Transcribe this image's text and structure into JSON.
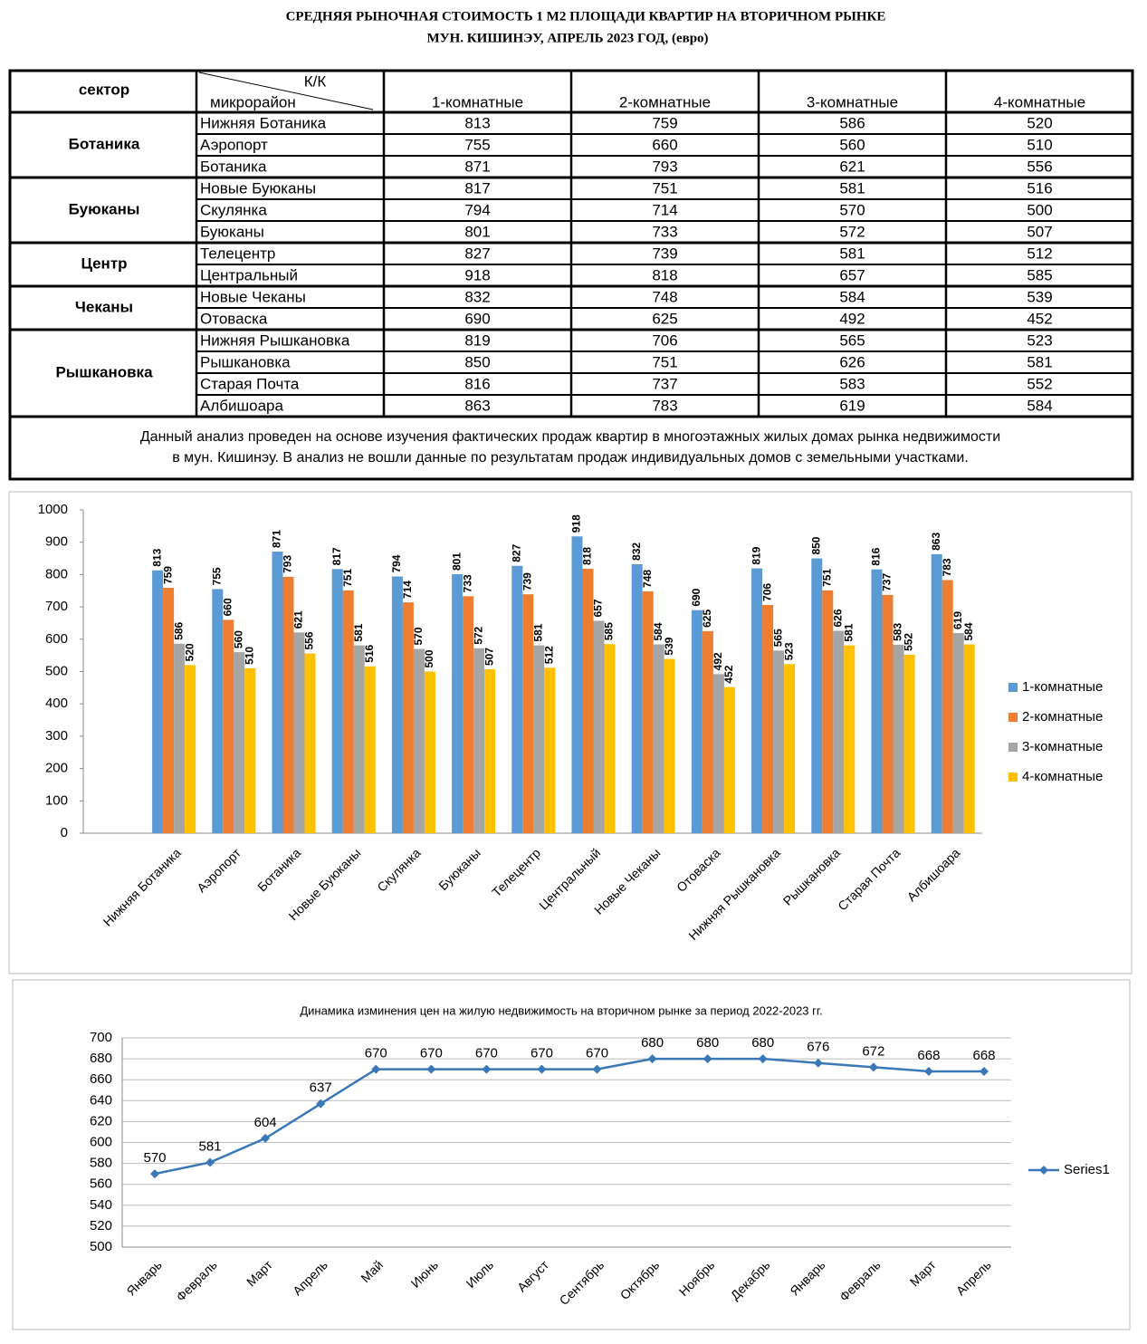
{
  "title": [
    "СРЕДНЯЯ  РЫНОЧНАЯ  СТОИМОСТЬ  1 М2  ПЛОЩАДИ  КВАРТИР НА ВТОРИЧНОМ РЫНКЕ",
    "МУН.  КИШИНЭУ, АПРЕЛЬ 2023 ГОД, (евро)"
  ],
  "table": {
    "header": {
      "sector": "сектор",
      "kk": "К/К",
      "district": "микрорайон"
    },
    "columns": [
      "1-комнатные",
      "2-комнатные",
      "3-комнатные",
      "4-комнатные"
    ],
    "sectors": [
      {
        "name": "Ботаника",
        "rows": [
          {
            "district": "Нижняя Ботаника",
            "values": [
              813,
              759,
              586,
              520
            ]
          },
          {
            "district": "Аэропорт",
            "values": [
              755,
              660,
              560,
              510
            ]
          },
          {
            "district": "Ботаника",
            "values": [
              871,
              793,
              621,
              556
            ]
          }
        ]
      },
      {
        "name": "Буюканы",
        "rows": [
          {
            "district": "Новые Буюканы",
            "values": [
              817,
              751,
              581,
              516
            ]
          },
          {
            "district": "Скулянка",
            "values": [
              794,
              714,
              570,
              500
            ]
          },
          {
            "district": "Буюканы",
            "values": [
              801,
              733,
              572,
              507
            ]
          }
        ]
      },
      {
        "name": "Центр",
        "rows": [
          {
            "district": "Телецентр",
            "values": [
              827,
              739,
              581,
              512
            ]
          },
          {
            "district": "Центральный",
            "values": [
              918,
              818,
              657,
              585
            ]
          }
        ]
      },
      {
        "name": "Чеканы",
        "rows": [
          {
            "district": "Новые Чеканы",
            "values": [
              832,
              748,
              584,
              539
            ]
          },
          {
            "district": "Отоваска",
            "values": [
              690,
              625,
              492,
              452
            ]
          }
        ]
      },
      {
        "name": "Рышкановка",
        "rows": [
          {
            "district": "Нижняя Рышкановка",
            "values": [
              819,
              706,
              565,
              523
            ]
          },
          {
            "district": "Рышкановка",
            "values": [
              850,
              751,
              626,
              581
            ]
          },
          {
            "district": "Старая Почта",
            "values": [
              816,
              737,
              583,
              552
            ]
          },
          {
            "district": "Албишоара",
            "values": [
              863,
              783,
              619,
              584
            ]
          }
        ]
      }
    ],
    "note": [
      "Данный анализ проведен на основе изучения фактических продаж квартир в многоэтажных жилых домах рынка недвижимости",
      "в мун. Кишинэу. В анализ не вошли данные по результатам  продаж индивидуальных домов с земельными участками."
    ]
  },
  "chart_data": [
    {
      "type": "bar",
      "categories": [
        "Нижняя Ботаника",
        "Аэропорт",
        "Ботаника",
        "Новые Буюканы",
        "Скулянка",
        "Буюканы",
        "Телецентр",
        "Центральный",
        "Новые Чеканы",
        "Отоваска",
        "Нижняя Рышкановка",
        "Рышкановка",
        "Старая Почта",
        "Албишоара"
      ],
      "series": [
        {
          "name": "1-комнатные",
          "color": "#5b9bd5",
          "values": [
            813,
            755,
            871,
            817,
            794,
            801,
            827,
            918,
            832,
            690,
            819,
            850,
            816,
            863
          ]
        },
        {
          "name": "2-комнатные",
          "color": "#ed7d31",
          "values": [
            759,
            660,
            793,
            751,
            714,
            733,
            739,
            818,
            748,
            625,
            706,
            751,
            737,
            783
          ]
        },
        {
          "name": "3-комнатные",
          "color": "#a5a5a5",
          "values": [
            586,
            560,
            621,
            581,
            570,
            572,
            581,
            657,
            584,
            492,
            565,
            626,
            583,
            619
          ]
        },
        {
          "name": "4-комнатные",
          "color": "#ffc000",
          "values": [
            520,
            510,
            556,
            516,
            500,
            507,
            512,
            585,
            539,
            452,
            523,
            581,
            552,
            584
          ]
        }
      ],
      "ylim": [
        0,
        1000
      ],
      "yticks": [
        0,
        100,
        200,
        300,
        400,
        500,
        600,
        700,
        800,
        900,
        1000
      ],
      "legend": "right"
    },
    {
      "type": "line",
      "title": "Динамика изминения цен на жилую недвижимость на вторичном рынке за период 2022-2023 гг.",
      "categories": [
        "Январь",
        "Февраль",
        "Март",
        "Апрель",
        "Май",
        "Июнь",
        "Июль",
        "Август",
        "Сентябрь",
        "Октябрь",
        "Ноябрь",
        "Декабрь",
        "Январь",
        "Февраль",
        "Март",
        "Апрель"
      ],
      "series": [
        {
          "name": "Series1",
          "color": "#3a78b8",
          "values": [
            570,
            581,
            604,
            637,
            670,
            670,
            670,
            670,
            670,
            680,
            680,
            680,
            676,
            672,
            668,
            668
          ]
        }
      ],
      "ylim": [
        500,
        700
      ],
      "yticks": [
        500,
        520,
        540,
        560,
        580,
        600,
        620,
        640,
        660,
        680,
        700
      ],
      "grid": true,
      "legend": "right"
    }
  ]
}
